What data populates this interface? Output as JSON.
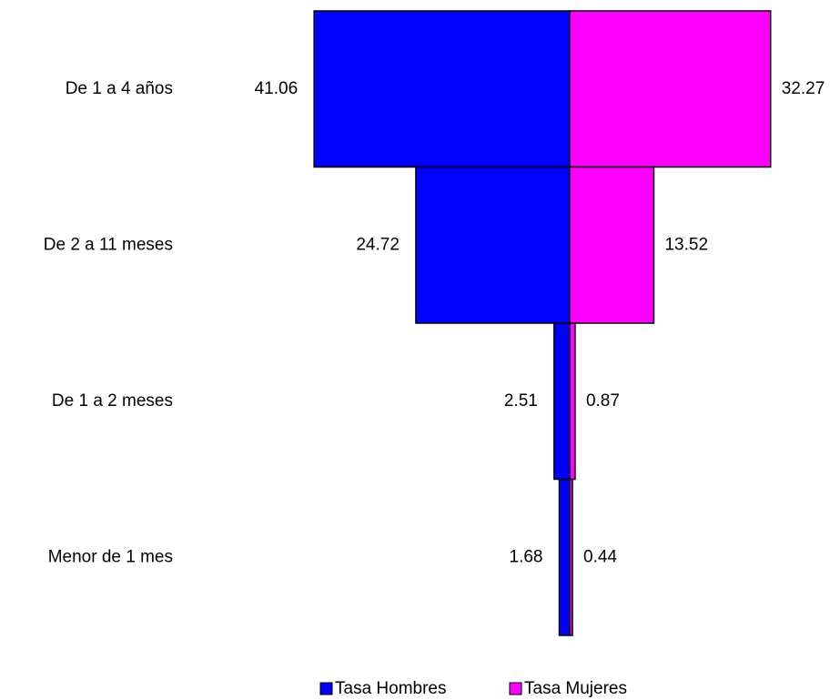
{
  "chart_data": {
    "type": "pyramid",
    "categories": [
      "De 1 a 4 años",
      "De 2 a 11 meses",
      "De 1 a 2 meses",
      "Menor de 1 mes"
    ],
    "series": [
      {
        "name": "Tasa Hombres",
        "color": "#0000ff",
        "values": [
          41.06,
          24.72,
          2.51,
          1.68
        ]
      },
      {
        "name": "Tasa Mujeres",
        "color": "#ff00ff",
        "values": [
          32.27,
          13.52,
          0.87,
          0.44
        ]
      }
    ],
    "legend": "bottom"
  }
}
